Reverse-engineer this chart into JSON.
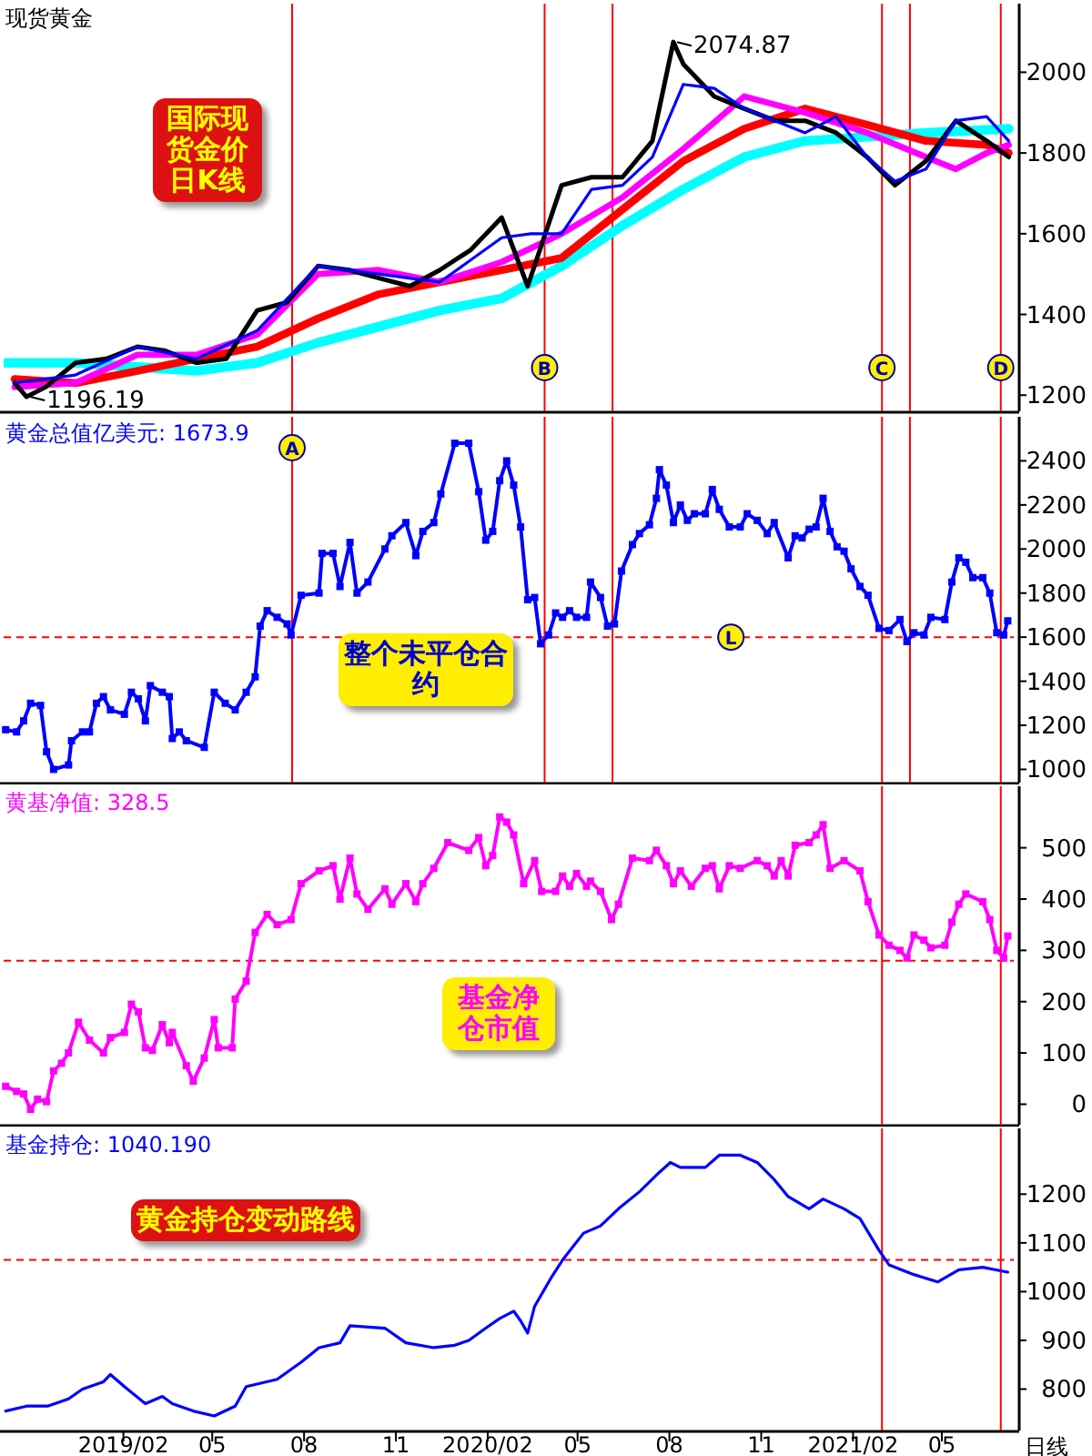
{
  "chart_data": [
    {
      "type": "line",
      "title": "现货黄金",
      "xlim": [
        "2018-10-04",
        "2021-07-12"
      ],
      "ylim": [
        1160,
        2170
      ],
      "yticks": [
        1200,
        1400,
        1600,
        1800,
        2000
      ],
      "tick_labels": "y",
      "series": [
        {
          "color": "#00ffff",
          "x": [
            "2018-10-06",
            "2018-12-15",
            "2019-02-15",
            "2019-04-15",
            "2019-06-15",
            "2019-08-15",
            "2019-10-15",
            "2019-12-15",
            "2020-02-15",
            "2020-04-15",
            "2020-06-15",
            "2020-08-15",
            "2020-10-15",
            "2020-12-15",
            "2021-02-15",
            "2021-04-15",
            "2021-07-07"
          ],
          "values": [
            1280,
            1280,
            1270,
            1260,
            1280,
            1330,
            1370,
            1410,
            1440,
            1520,
            1620,
            1710,
            1790,
            1830,
            1840,
            1850,
            1860
          ]
        },
        {
          "color": "#ff0000",
          "x": [
            "2018-10-15",
            "2018-12-15",
            "2019-02-15",
            "2019-04-15",
            "2019-06-15",
            "2019-08-15",
            "2019-10-15",
            "2019-12-15",
            "2020-02-15",
            "2020-04-15",
            "2020-06-15",
            "2020-08-15",
            "2020-10-15",
            "2020-12-15",
            "2021-02-15",
            "2021-04-15",
            "2021-06-15",
            "2021-07-07"
          ],
          "values": [
            1240,
            1230,
            1260,
            1290,
            1320,
            1390,
            1450,
            1480,
            1510,
            1540,
            1660,
            1780,
            1860,
            1910,
            1870,
            1830,
            1820,
            1800
          ]
        },
        {
          "color": "#ff00ff",
          "x": [
            "2018-10-15",
            "2018-12-15",
            "2019-02-15",
            "2019-04-15",
            "2019-06-15",
            "2019-08-15",
            "2019-10-15",
            "2019-12-15",
            "2020-02-15",
            "2020-04-15",
            "2020-06-15",
            "2020-08-15",
            "2020-10-15",
            "2020-12-15",
            "2021-02-15",
            "2021-04-15",
            "2021-05-15",
            "2021-06-15",
            "2021-07-07"
          ],
          "values": [
            1220,
            1230,
            1300,
            1300,
            1350,
            1500,
            1510,
            1480,
            1530,
            1600,
            1690,
            1810,
            1940,
            1900,
            1850,
            1790,
            1760,
            1800,
            1820
          ]
        },
        {
          "color": "#000000",
          "x": [
            "2018-10-15",
            "2018-10-27",
            "2018-11-15",
            "2018-12-15",
            "2019-01-15",
            "2019-02-15",
            "2019-03-15",
            "2019-04-15",
            "2019-05-15",
            "2019-06-15",
            "2019-07-15",
            "2019-08-15",
            "2019-09-15",
            "2019-10-15",
            "2019-11-15",
            "2019-12-15",
            "2020-01-15",
            "2020-02-15",
            "2020-03-12",
            "2020-04-15",
            "2020-05-15",
            "2020-06-15",
            "2020-07-15",
            "2020-08-05",
            "2020-08-15",
            "2020-09-15",
            "2020-10-15",
            "2020-11-15",
            "2020-12-15",
            "2021-01-15",
            "2021-02-15",
            "2021-03-15",
            "2021-04-15",
            "2021-05-15",
            "2021-06-15",
            "2021-07-07"
          ],
          "values": [
            1230,
            1196,
            1220,
            1280,
            1290,
            1320,
            1310,
            1280,
            1290,
            1410,
            1430,
            1520,
            1510,
            1490,
            1470,
            1510,
            1560,
            1640,
            1470,
            1720,
            1740,
            1740,
            1830,
            2075,
            2020,
            1940,
            1910,
            1880,
            1880,
            1850,
            1790,
            1720,
            1780,
            1880,
            1830,
            1790
          ]
        },
        {
          "color": "#0000ff",
          "x": [
            "2018-10-15",
            "2018-12-15",
            "2019-02-15",
            "2019-04-15",
            "2019-06-15",
            "2019-08-15",
            "2019-10-15",
            "2019-12-15",
            "2020-02-15",
            "2020-03-15",
            "2020-04-15",
            "2020-05-15",
            "2020-06-15",
            "2020-07-15",
            "2020-08-15",
            "2020-09-15",
            "2020-10-15",
            "2020-11-15",
            "2020-12-15",
            "2021-01-15",
            "2021-02-15",
            "2021-03-15",
            "2021-04-15",
            "2021-05-15",
            "2021-06-15",
            "2021-07-07"
          ],
          "values": [
            1230,
            1250,
            1320,
            1290,
            1360,
            1520,
            1500,
            1480,
            1590,
            1600,
            1600,
            1710,
            1720,
            1790,
            1970,
            1960,
            1910,
            1880,
            1850,
            1890,
            1790,
            1730,
            1760,
            1880,
            1890,
            1830
          ]
        }
      ],
      "ref_lines": [
        {
          "axis": "x",
          "value": "2019-07-20",
          "label": null,
          "color": "#ff0000"
        },
        {
          "axis": "x",
          "value": "2020-03-29",
          "label": "B",
          "color": "#ff0000"
        },
        {
          "axis": "x",
          "value": "2020-06-05",
          "label": null,
          "color": "#ff0000"
        },
        {
          "axis": "x",
          "value": "2021-03-02",
          "label": "C",
          "color": "#ff0000"
        },
        {
          "axis": "x",
          "value": "2021-03-30",
          "label": null,
          "color": "#ff0000"
        },
        {
          "axis": "x",
          "value": "2021-06-29",
          "label": "D",
          "color": "#ff0000"
        }
      ],
      "annotations": [
        "国际现货金价日K线",
        {
          "text": "2074.87",
          "x": "2020-08-05",
          "y": 2074.87
        },
        {
          "text": "1196.19",
          "x": "2018-10-27",
          "y": 1196.19
        }
      ]
    },
    {
      "type": "line",
      "title": "黄金总值亿美元: 1673.9",
      "xlim": [
        "2018-10-04",
        "2021-07-12"
      ],
      "ylim": [
        940,
        2600
      ],
      "yticks": [
        1000,
        1200,
        1400,
        1600,
        1800,
        2000,
        2200,
        2400
      ],
      "tick_labels": "y",
      "marker": "square",
      "series": [
        {
          "color": "#0000ff",
          "x": [
            "2018-10-06",
            "2018-10-17",
            "2018-10-24",
            "2018-10-31",
            "2018-11-10",
            "2018-11-16",
            "2018-11-23",
            "2018-12-08",
            "2018-12-11",
            "2018-12-22",
            "2018-12-29",
            "2019-01-05",
            "2019-01-12",
            "2019-01-19",
            "2019-02-02",
            "2019-02-09",
            "2019-02-16",
            "2019-02-23",
            "2019-02-28",
            "2019-03-12",
            "2019-03-19",
            "2019-03-22",
            "2019-03-29",
            "2019-04-05",
            "2019-04-23",
            "2019-05-03",
            "2019-05-14",
            "2019-05-24",
            "2019-06-04",
            "2019-06-13",
            "2019-06-18",
            "2019-06-25",
            "2019-07-05",
            "2019-07-15",
            "2019-07-19",
            "2019-07-29",
            "2019-08-16",
            "2019-08-19",
            "2019-08-30",
            "2019-09-06",
            "2019-09-16",
            "2019-09-23",
            "2019-10-04",
            "2019-10-21",
            "2019-10-28",
            "2019-11-11",
            "2019-11-21",
            "2019-11-28",
            "2019-12-09",
            "2019-12-16",
            "2019-12-30",
            "2020-01-13",
            "2020-01-23",
            "2020-01-30",
            "2020-02-06",
            "2020-02-13",
            "2020-02-20",
            "2020-02-27",
            "2020-03-05",
            "2020-03-12",
            "2020-03-19",
            "2020-03-25",
            "2020-04-02",
            "2020-04-09",
            "2020-04-16",
            "2020-04-23",
            "2020-04-30",
            "2020-05-10",
            "2020-05-14",
            "2020-05-24",
            "2020-05-31",
            "2020-06-07",
            "2020-06-14",
            "2020-06-25",
            "2020-07-02",
            "2020-07-12",
            "2020-07-19",
            "2020-07-22",
            "2020-07-29",
            "2020-08-05",
            "2020-08-12",
            "2020-08-19",
            "2020-08-26",
            "2020-09-06",
            "2020-09-13",
            "2020-09-20",
            "2020-09-30",
            "2020-10-11",
            "2020-10-18",
            "2020-10-28",
            "2020-11-07",
            "2020-11-14",
            "2020-11-28",
            "2020-12-05",
            "2020-12-12",
            "2020-12-19",
            "2020-12-26",
            "2021-01-02",
            "2021-01-09",
            "2021-01-16",
            "2021-01-23",
            "2021-01-30",
            "2021-02-08",
            "2021-02-16",
            "2021-02-27",
            "2021-03-09",
            "2021-03-20",
            "2021-03-27",
            "2021-04-03",
            "2021-04-13",
            "2021-04-20",
            "2021-05-04",
            "2021-05-11",
            "2021-05-18",
            "2021-05-25",
            "2021-06-01",
            "2021-06-11",
            "2021-06-18",
            "2021-06-25",
            "2021-07-02",
            "2021-07-06"
          ],
          "values": [
            1180,
            1170,
            1220,
            1300,
            1290,
            1080,
            1000,
            1020,
            1130,
            1170,
            1170,
            1300,
            1330,
            1270,
            1250,
            1350,
            1320,
            1220,
            1380,
            1350,
            1330,
            1140,
            1170,
            1130,
            1100,
            1350,
            1300,
            1270,
            1350,
            1420,
            1650,
            1720,
            1690,
            1660,
            1610,
            1790,
            1800,
            1980,
            1980,
            1830,
            2030,
            1800,
            1850,
            2000,
            2060,
            2120,
            1970,
            2080,
            2120,
            2250,
            2480,
            2480,
            2260,
            2040,
            2080,
            2310,
            2400,
            2290,
            2100,
            1770,
            1780,
            1570,
            1610,
            1710,
            1690,
            1720,
            1690,
            1690,
            1850,
            1780,
            1650,
            1660,
            1900,
            2020,
            2070,
            2110,
            2230,
            2360,
            2290,
            2120,
            2200,
            2130,
            2160,
            2160,
            2270,
            2180,
            2100,
            2100,
            2160,
            2130,
            2070,
            2120,
            1960,
            2060,
            2050,
            2090,
            2100,
            2230,
            2080,
            2010,
            1990,
            1910,
            1830,
            1790,
            1640,
            1630,
            1680,
            1580,
            1620,
            1610,
            1690,
            1680,
            1850,
            1960,
            1940,
            1870,
            1870,
            1800,
            1620,
            1610,
            1674
          ]
        }
      ],
      "ref_lines": [
        {
          "axis": "y",
          "value": 1600,
          "label": "L",
          "color": "#ff0000",
          "line_style": "dashed"
        },
        {
          "axis": "x",
          "value": "2019-07-20",
          "label": "A",
          "color": "#ff0000"
        },
        {
          "axis": "x",
          "value": "2020-03-29",
          "label": null,
          "color": "#ff0000"
        },
        {
          "axis": "x",
          "value": "2020-06-05",
          "label": null,
          "color": "#ff0000"
        },
        {
          "axis": "x",
          "value": "2021-03-02",
          "label": null,
          "color": "#ff0000"
        },
        {
          "axis": "x",
          "value": "2021-03-30",
          "label": null,
          "color": "#ff0000"
        },
        {
          "axis": "x",
          "value": "2021-06-29",
          "label": null,
          "color": "#ff0000"
        }
      ],
      "annotations": [
        "整个未平仓合约"
      ]
    },
    {
      "type": "line",
      "title": "黄基净值: 328.5",
      "xlim": [
        "2018-10-04",
        "2021-07-12"
      ],
      "ylim": [
        -40,
        620
      ],
      "yticks": [
        0,
        100,
        200,
        300,
        400,
        500
      ],
      "tick_labels": "y",
      "marker": "square",
      "series": [
        {
          "color": "#ff00ff",
          "x": [
            "2018-10-06",
            "2018-10-17",
            "2018-10-24",
            "2018-10-31",
            "2018-11-07",
            "2018-11-16",
            "2018-11-23",
            "2018-12-01",
            "2018-12-08",
            "2018-12-18",
            "2018-12-29",
            "2019-01-12",
            "2019-01-19",
            "2019-02-02",
            "2019-02-09",
            "2019-02-16",
            "2019-02-23",
            "2019-03-02",
            "2019-03-12",
            "2019-03-19",
            "2019-03-22",
            "2019-04-05",
            "2019-04-12",
            "2019-04-23",
            "2019-05-03",
            "2019-05-07",
            "2019-05-21",
            "2019-05-24",
            "2019-06-04",
            "2019-06-13",
            "2019-06-25",
            "2019-07-05",
            "2019-07-19",
            "2019-07-29",
            "2019-08-16",
            "2019-08-30",
            "2019-09-06",
            "2019-09-16",
            "2019-09-23",
            "2019-10-04",
            "2019-10-21",
            "2019-10-28",
            "2019-11-11",
            "2019-11-21",
            "2019-11-28",
            "2019-12-09",
            "2019-12-23",
            "2020-01-13",
            "2020-01-23",
            "2020-01-30",
            "2020-02-06",
            "2020-02-13",
            "2020-02-20",
            "2020-02-27",
            "2020-03-08",
            "2020-03-19",
            "2020-03-26",
            "2020-04-09",
            "2020-04-16",
            "2020-04-23",
            "2020-04-30",
            "2020-05-10",
            "2020-05-14",
            "2020-05-24",
            "2020-06-04",
            "2020-06-11",
            "2020-06-25",
            "2020-07-12",
            "2020-07-19",
            "2020-07-29",
            "2020-08-05",
            "2020-08-12",
            "2020-08-23",
            "2020-09-06",
            "2020-09-13",
            "2020-09-20",
            "2020-09-30",
            "2020-10-11",
            "2020-10-28",
            "2020-11-07",
            "2020-11-14",
            "2020-11-21",
            "2020-11-28",
            "2020-12-05",
            "2020-12-19",
            "2020-12-26",
            "2021-01-02",
            "2021-01-09",
            "2021-01-23",
            "2021-02-08",
            "2021-02-16",
            "2021-02-27",
            "2021-03-09",
            "2021-03-20",
            "2021-03-27",
            "2021-04-03",
            "2021-04-13",
            "2021-04-20",
            "2021-05-04",
            "2021-05-11",
            "2021-05-18",
            "2021-05-25",
            "2021-06-11",
            "2021-06-18",
            "2021-06-25",
            "2021-07-02",
            "2021-07-06"
          ],
          "values": [
            35,
            25,
            20,
            -10,
            10,
            5,
            65,
            80,
            100,
            160,
            125,
            100,
            130,
            140,
            195,
            180,
            110,
            105,
            155,
            120,
            140,
            75,
            45,
            90,
            165,
            110,
            110,
            205,
            240,
            335,
            370,
            350,
            360,
            430,
            455,
            465,
            400,
            480,
            410,
            380,
            420,
            390,
            430,
            395,
            430,
            460,
            510,
            495,
            520,
            465,
            485,
            560,
            550,
            525,
            430,
            475,
            415,
            415,
            445,
            425,
            450,
            425,
            435,
            415,
            360,
            390,
            480,
            475,
            495,
            465,
            430,
            455,
            425,
            460,
            465,
            420,
            465,
            460,
            475,
            465,
            445,
            475,
            445,
            505,
            510,
            525,
            545,
            460,
            475,
            455,
            395,
            330,
            310,
            300,
            285,
            330,
            320,
            305,
            310,
            355,
            390,
            410,
            395,
            360,
            300,
            285,
            328
          ]
        }
      ],
      "ref_lines": [
        {
          "axis": "y",
          "value": 280,
          "label": null,
          "color": "#ff0000",
          "line_style": "dashed"
        },
        {
          "axis": "x",
          "value": "2021-03-02",
          "label": null,
          "color": "#ff0000"
        },
        {
          "axis": "x",
          "value": "2021-06-29",
          "label": null,
          "color": "#ff0000"
        }
      ],
      "annotations": [
        "基金净仓市值"
      ]
    },
    {
      "type": "line",
      "title": "基金持仓: 1040.190",
      "xlim": [
        "2018-10-04",
        "2021-07-12"
      ],
      "ylim": [
        715,
        1335
      ],
      "yticks": [
        800,
        900,
        1000,
        1100,
        1200
      ],
      "xticks": [
        {
          "value": "2019-02",
          "label": "2019/02"
        },
        {
          "value": "2019-05",
          "label": "05"
        },
        {
          "value": "2019-08",
          "label": "08"
        },
        {
          "value": "2019-11",
          "label": "11"
        },
        {
          "value": "2020-02",
          "label": "2020/02"
        },
        {
          "value": "2020-05",
          "label": "05"
        },
        {
          "value": "2020-08",
          "label": "08"
        },
        {
          "value": "2020-11",
          "label": "11"
        },
        {
          "value": "2021-02",
          "label": "2021/02"
        },
        {
          "value": "2021-05",
          "label": "05"
        }
      ],
      "series": [
        {
          "color": "#0000ff",
          "x": [
            "2018-10-06",
            "2018-10-27",
            "2018-11-17",
            "2018-12-08",
            "2018-12-22",
            "2019-01-12",
            "2019-01-19",
            "2019-02-02",
            "2019-02-23",
            "2019-03-12",
            "2019-03-22",
            "2019-04-12",
            "2019-05-03",
            "2019-05-24",
            "2019-06-04",
            "2019-07-05",
            "2019-07-29",
            "2019-08-16",
            "2019-09-06",
            "2019-09-16",
            "2019-10-21",
            "2019-11-11",
            "2019-12-09",
            "2019-12-30",
            "2020-01-13",
            "2020-01-30",
            "2020-02-13",
            "2020-02-27",
            "2020-03-05",
            "2020-03-12",
            "2020-03-19",
            "2020-04-05",
            "2020-04-16",
            "2020-05-07",
            "2020-05-24",
            "2020-06-11",
            "2020-07-02",
            "2020-07-22",
            "2020-08-02",
            "2020-08-12",
            "2020-09-06",
            "2020-09-20",
            "2020-10-11",
            "2020-10-28",
            "2020-11-14",
            "2020-11-28",
            "2020-12-19",
            "2021-01-02",
            "2021-01-23",
            "2021-02-08",
            "2021-02-27",
            "2021-03-09",
            "2021-04-03",
            "2021-04-27",
            "2021-05-18",
            "2021-06-11",
            "2021-07-06"
          ],
          "values": [
            755,
            765,
            765,
            780,
            800,
            815,
            830,
            805,
            770,
            785,
            770,
            755,
            745,
            765,
            805,
            820,
            855,
            885,
            895,
            930,
            925,
            895,
            885,
            890,
            900,
            925,
            945,
            960,
            940,
            915,
            970,
            1030,
            1065,
            1120,
            1135,
            1170,
            1205,
            1245,
            1265,
            1255,
            1255,
            1280,
            1280,
            1265,
            1230,
            1195,
            1170,
            1190,
            1170,
            1150,
            1085,
            1055,
            1035,
            1020,
            1045,
            1050,
            1040
          ]
        }
      ],
      "ref_lines": [
        {
          "axis": "y",
          "value": 1065,
          "label": null,
          "color": "#ff0000",
          "line_style": "dashed"
        },
        {
          "axis": "x",
          "value": "2021-03-02",
          "label": null,
          "color": "#ff0000"
        },
        {
          "axis": "x",
          "value": "2021-06-29",
          "label": null,
          "color": "#ff0000"
        }
      ],
      "annotations": [
        "黄金持仓变动路线",
        "日线"
      ]
    }
  ]
}
